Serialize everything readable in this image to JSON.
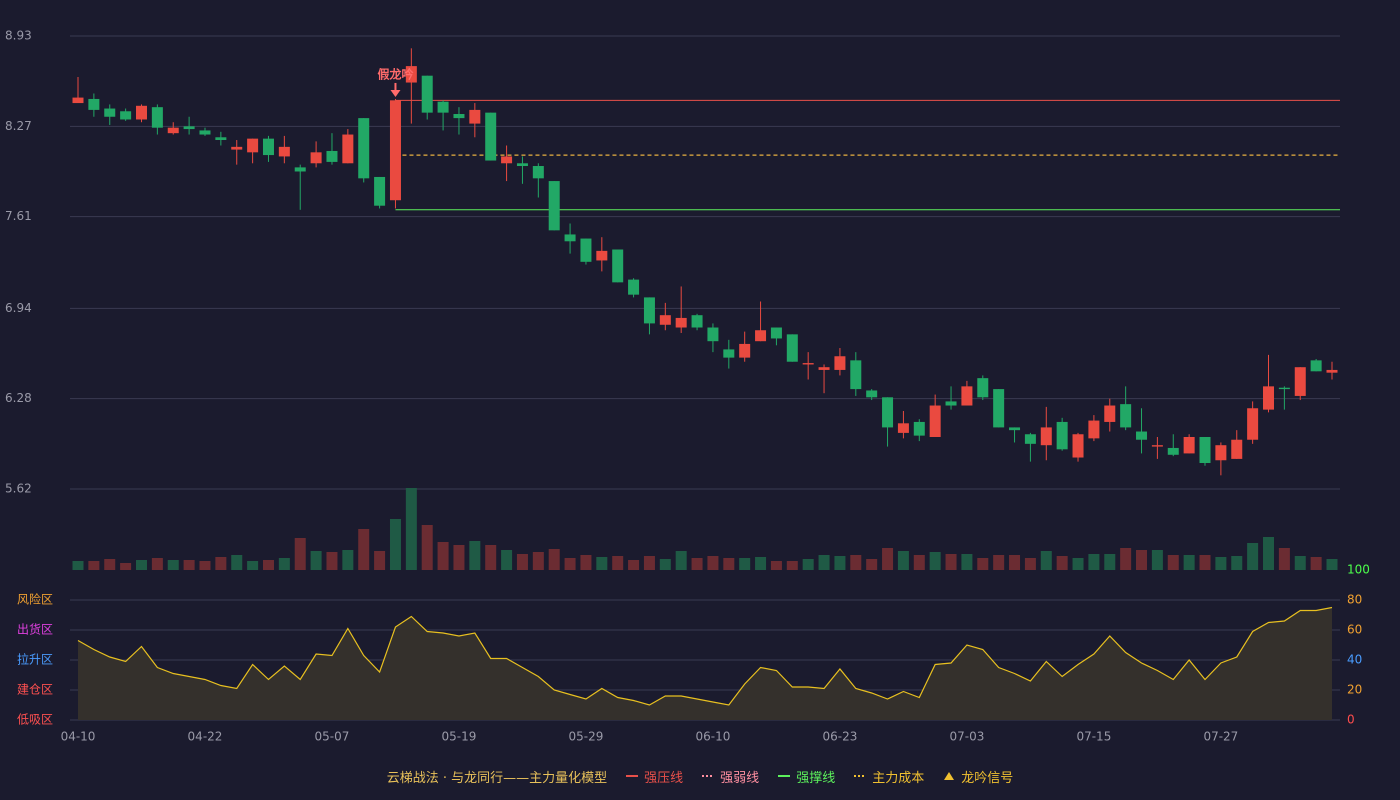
{
  "chart_data": {
    "type": "candlestick",
    "categories": [
      "04-10",
      null,
      null,
      null,
      null,
      null,
      null,
      null,
      "04-22",
      null,
      null,
      null,
      null,
      null,
      null,
      null,
      "05-07",
      null,
      null,
      null,
      null,
      null,
      null,
      null,
      "05-19",
      null,
      null,
      null,
      null,
      null,
      null,
      null,
      "05-29",
      null,
      null,
      null,
      null,
      null,
      null,
      null,
      "06-10",
      null,
      null,
      null,
      null,
      null,
      null,
      null,
      "06-23",
      null,
      null,
      null,
      null,
      null,
      null,
      null,
      "07-03",
      null,
      null,
      null,
      null,
      null,
      null,
      null,
      "07-15",
      null,
      null,
      null,
      null,
      null,
      null,
      null,
      "07-27",
      null,
      null,
      null,
      null,
      null,
      null,
      null
    ],
    "open": [
      8.44,
      8.47,
      8.4,
      8.38,
      8.32,
      8.41,
      8.22,
      8.27,
      8.24,
      8.19,
      8.1,
      8.08,
      8.18,
      8.05,
      7.97,
      8.0,
      8.09,
      8.0,
      8.33,
      7.9,
      7.73,
      8.59,
      8.64,
      8.45,
      8.36,
      8.29,
      8.37,
      8.0,
      8.0,
      7.98,
      7.87,
      7.48,
      7.45,
      7.29,
      7.37,
      7.15,
      7.02,
      6.82,
      6.8,
      6.89,
      6.8,
      6.64,
      6.58,
      6.7,
      6.8,
      6.75,
      6.53,
      6.49,
      6.49,
      6.56,
      6.34,
      6.29,
      6.03,
      6.11,
      6.0,
      6.26,
      6.23,
      6.43,
      6.35,
      6.07,
      6.02,
      5.94,
      6.11,
      5.85,
      5.99,
      6.11,
      6.24,
      6.04,
      5.93,
      5.92,
      5.88,
      6.0,
      5.83,
      5.84,
      5.98,
      6.2,
      6.36,
      6.3,
      6.56,
      6.47
    ],
    "high": [
      8.63,
      8.51,
      8.43,
      8.4,
      8.43,
      8.43,
      8.3,
      8.34,
      8.26,
      8.23,
      8.17,
      8.18,
      8.2,
      8.2,
      7.99,
      8.16,
      8.22,
      8.25,
      8.33,
      7.9,
      8.47,
      8.84,
      8.64,
      8.46,
      8.41,
      8.44,
      8.37,
      8.13,
      8.05,
      8.0,
      7.87,
      7.56,
      7.45,
      7.46,
      7.37,
      7.16,
      7.02,
      6.98,
      7.1,
      6.9,
      6.83,
      6.71,
      6.77,
      6.99,
      6.8,
      6.75,
      6.62,
      6.53,
      6.65,
      6.62,
      6.35,
      6.29,
      6.19,
      6.13,
      6.31,
      6.37,
      6.41,
      6.45,
      6.35,
      6.07,
      6.03,
      6.22,
      6.14,
      6.03,
      6.16,
      6.28,
      6.37,
      6.21,
      6.0,
      6.02,
      6.02,
      6.0,
      5.96,
      6.05,
      6.26,
      6.6,
      6.37,
      6.51,
      6.57,
      6.55
    ],
    "low": [
      8.44,
      8.34,
      8.28,
      8.31,
      8.3,
      8.21,
      8.21,
      8.21,
      8.2,
      8.13,
      7.99,
      8.0,
      8.01,
      8.0,
      7.66,
      7.97,
      7.99,
      8.0,
      7.86,
      7.67,
      7.67,
      8.29,
      8.32,
      8.24,
      8.21,
      8.19,
      8.02,
      7.87,
      7.85,
      7.75,
      7.51,
      7.34,
      7.26,
      7.21,
      7.13,
      7.02,
      6.75,
      6.78,
      6.76,
      6.78,
      6.62,
      6.5,
      6.55,
      6.7,
      6.67,
      6.55,
      6.42,
      6.32,
      6.45,
      6.3,
      6.27,
      5.93,
      5.99,
      5.97,
      6.0,
      6.2,
      6.23,
      6.27,
      6.07,
      5.96,
      5.82,
      5.83,
      5.9,
      5.82,
      5.97,
      6.04,
      6.05,
      5.88,
      5.84,
      5.86,
      5.88,
      5.79,
      5.72,
      5.84,
      5.95,
      6.18,
      6.2,
      6.27,
      6.48,
      6.42
    ],
    "close": [
      8.48,
      8.39,
      8.34,
      8.32,
      8.42,
      8.26,
      8.26,
      8.25,
      8.21,
      8.17,
      8.12,
      8.18,
      8.06,
      8.12,
      7.94,
      8.08,
      8.01,
      8.21,
      7.89,
      7.69,
      8.46,
      8.71,
      8.37,
      8.37,
      8.33,
      8.39,
      8.02,
      8.05,
      7.98,
      7.89,
      7.51,
      7.43,
      7.28,
      7.36,
      7.13,
      7.04,
      6.83,
      6.89,
      6.87,
      6.8,
      6.7,
      6.58,
      6.68,
      6.78,
      6.72,
      6.55,
      6.54,
      6.51,
      6.59,
      6.35,
      6.29,
      6.07,
      6.1,
      6.01,
      6.23,
      6.23,
      6.37,
      6.29,
      6.07,
      6.05,
      5.95,
      6.07,
      5.91,
      6.02,
      6.12,
      6.23,
      6.07,
      5.98,
      5.94,
      5.87,
      6.0,
      5.81,
      5.94,
      5.98,
      6.21,
      6.37,
      6.35,
      6.51,
      6.48,
      6.49
    ],
    "up_color": "#ea4a40",
    "down_color": "#22a866",
    "ylim": [
      5.62,
      8.93
    ],
    "yticks": [
      5.62,
      6.28,
      6.94,
      7.61,
      8.27,
      8.93
    ],
    "grid": true,
    "volume": [
      9,
      9,
      11,
      7,
      10,
      12,
      10,
      10,
      9,
      13,
      15,
      9,
      10,
      12,
      32,
      19,
      18,
      20,
      41,
      19,
      51,
      82,
      45,
      28,
      25,
      29,
      25,
      20,
      16,
      18,
      21,
      12,
      15,
      13,
      14,
      10,
      14,
      11,
      19,
      12,
      14,
      12,
      12,
      13,
      9,
      9,
      11,
      15,
      14,
      15,
      11,
      22,
      19,
      15,
      18,
      16,
      16,
      12,
      15,
      15,
      12,
      19,
      14,
      12,
      16,
      16,
      22,
      20,
      20,
      15,
      15,
      15,
      13,
      14,
      27,
      33,
      22,
      14,
      13,
      11
    ],
    "volume_rise_color": "#1f5a45",
    "volume_fall_color": "#6b2c32",
    "levels": [
      {
        "name": "强压线",
        "value": 8.46,
        "color": "#e8504a",
        "dash": "none"
      },
      {
        "name": "强弱线",
        "value": 8.06,
        "color": "#ff8fa0",
        "dash": "4 3"
      },
      {
        "name": "强撑线",
        "value": 7.66,
        "color": "#5cf05c",
        "dash": "none"
      },
      {
        "name": "主力成本",
        "value": 8.06,
        "color": "#f0c030",
        "dash": "4 3"
      }
    ],
    "levels_start": 20,
    "signal": {
      "name": "龙吟信号",
      "color": "#f0c030"
    },
    "annotation": {
      "text": "假龙吟",
      "index": 20,
      "color": "#ff6b6b"
    },
    "oscillator": {
      "values": [
        53,
        47,
        42,
        39,
        49,
        35,
        31,
        29,
        27,
        23,
        21,
        37,
        27,
        36,
        27,
        44,
        43,
        61,
        43,
        32,
        62,
        69,
        59,
        58,
        56,
        58,
        41,
        41,
        35,
        29,
        20,
        17,
        14,
        21,
        15,
        13,
        10,
        16,
        16,
        14,
        12,
        10,
        24,
        35,
        33,
        22,
        22,
        21,
        34,
        21,
        18,
        14,
        19,
        15,
        37,
        38,
        50,
        47,
        35,
        31,
        26,
        39,
        29,
        37,
        44,
        56,
        45,
        38,
        33,
        27,
        40,
        27,
        38,
        42,
        59,
        65,
        66,
        73,
        73,
        75
      ],
      "color": "#e8c020",
      "fill": "#34302c",
      "ylim": [
        0,
        100
      ],
      "yticks": [
        0,
        20,
        40,
        60,
        80,
        100
      ],
      "ytick_colors": [
        "#ff4d4d",
        "#f0a030",
        "#4a9cff",
        "#f0a030",
        "#f0a030",
        "#4cff4c"
      ],
      "zones": [
        {
          "label": "风险区",
          "value": 80,
          "color": "#f0a030"
        },
        {
          "label": "出货区",
          "value": 60,
          "color": "#e040e0"
        },
        {
          "label": "拉升区",
          "value": 40,
          "color": "#4a9cff"
        },
        {
          "label": "建仓区",
          "value": 20,
          "color": "#ff5050"
        },
        {
          "label": "低吸区",
          "value": 0,
          "color": "#ff5050"
        }
      ]
    },
    "legend_title": "云梯战法 · 与龙同行——主力量化模型"
  }
}
